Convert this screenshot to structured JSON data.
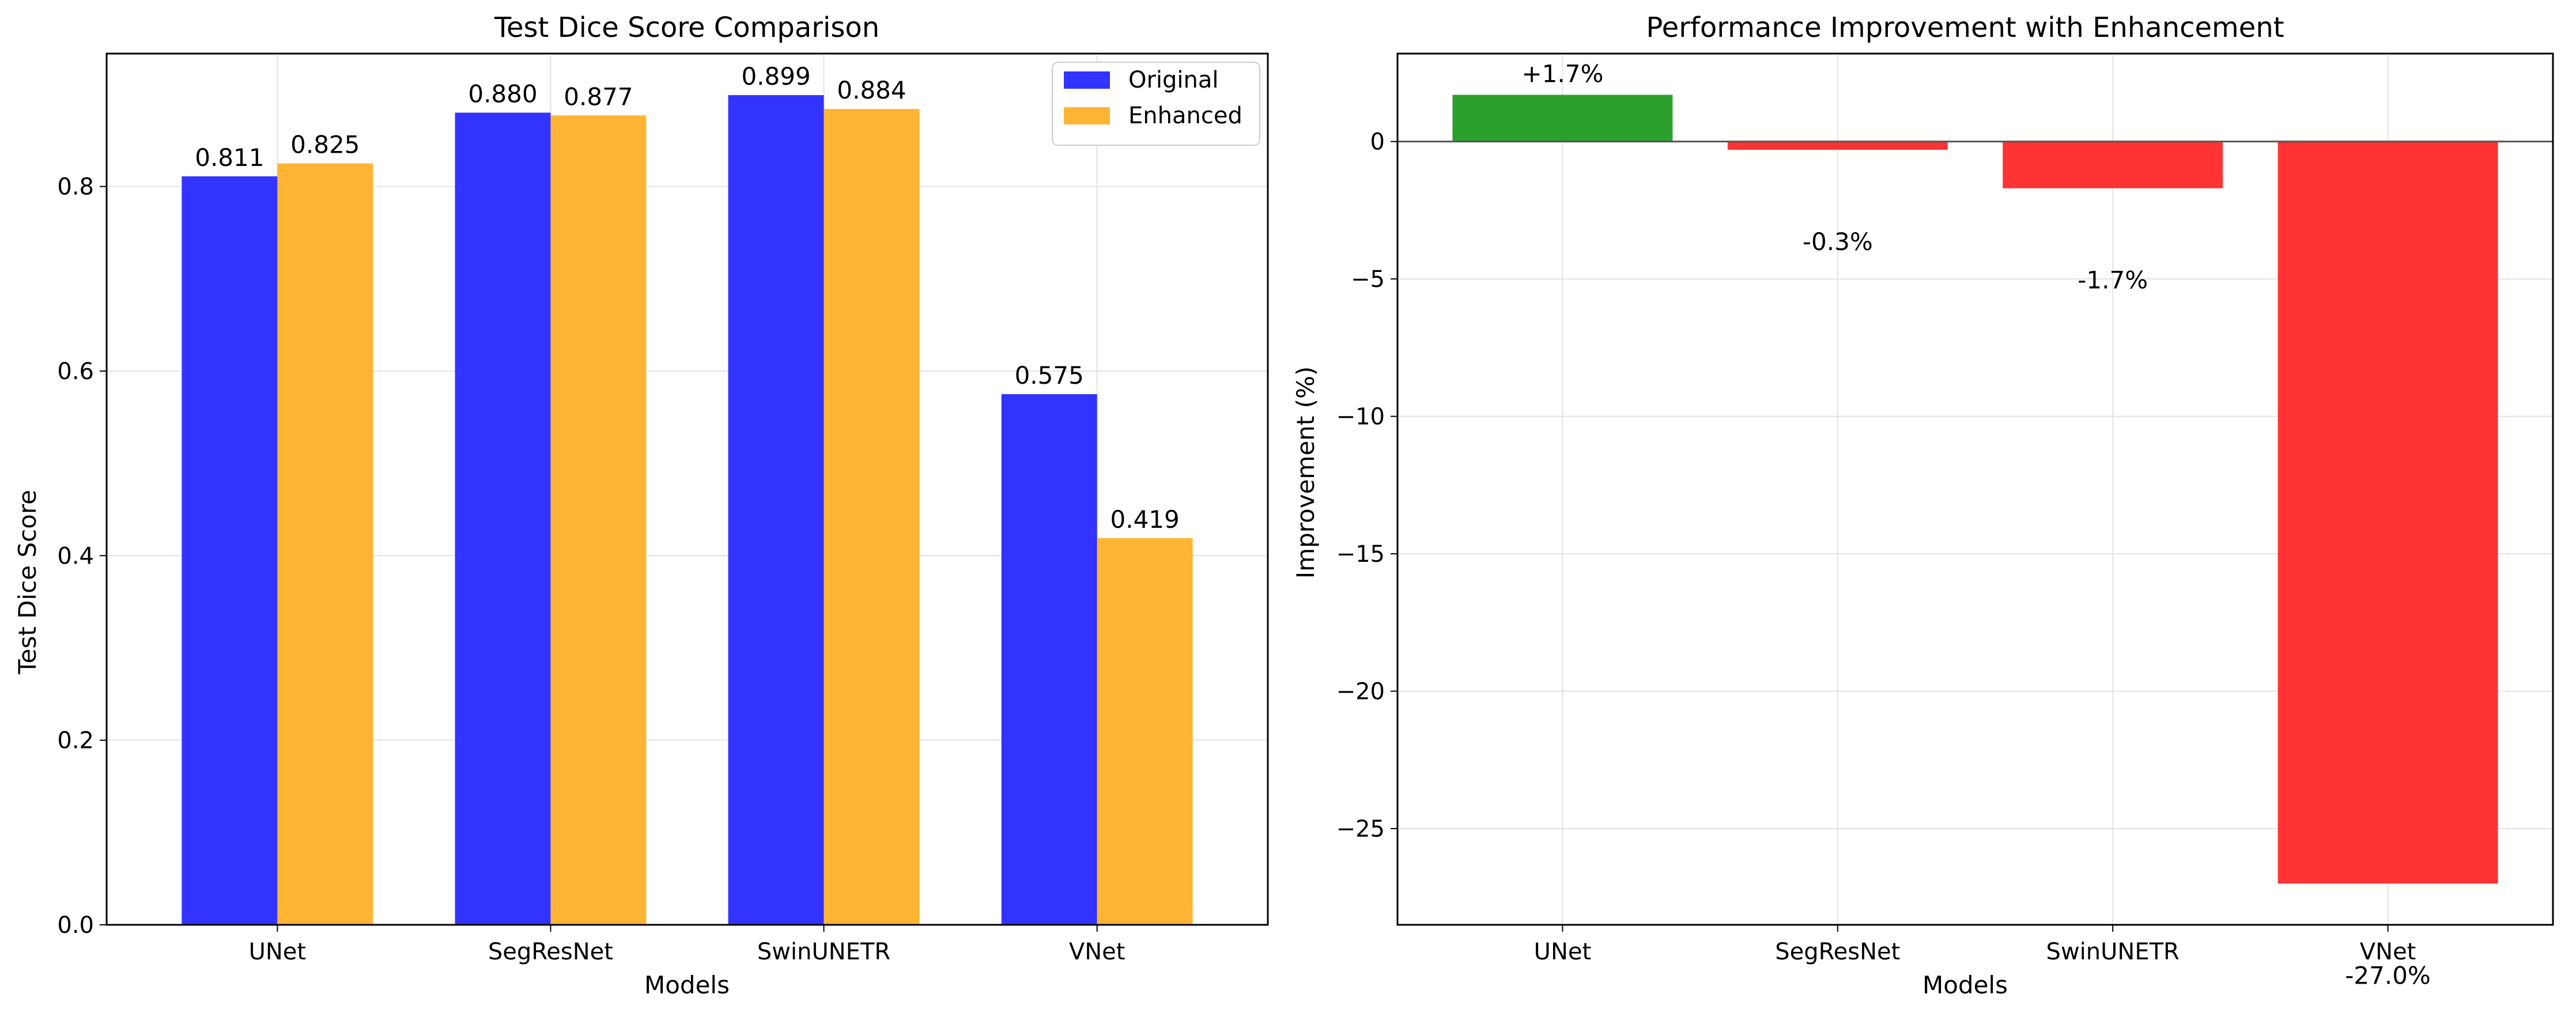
{
  "chart_data": [
    {
      "type": "bar",
      "title": "Test Dice Score Comparison",
      "xlabel": "Models",
      "ylabel": "Test Dice Score",
      "categories": [
        "UNet",
        "SegResNet",
        "SwinUNETR",
        "VNet"
      ],
      "series": [
        {
          "name": "Original",
          "values": [
            0.811,
            0.88,
            0.899,
            0.575
          ],
          "labels": [
            "0.811",
            "0.880",
            "0.899",
            "0.575"
          ],
          "color": "#3333ff"
        },
        {
          "name": "Enhanced",
          "values": [
            0.825,
            0.877,
            0.884,
            0.419
          ],
          "labels": [
            "0.825",
            "0.877",
            "0.884",
            "0.419"
          ],
          "color": "#ffb533"
        }
      ],
      "ylim": [
        0,
        0.944
      ],
      "yticks": [
        0.0,
        0.2,
        0.4,
        0.6,
        0.8
      ],
      "ytick_labels": [
        "0.0",
        "0.2",
        "0.4",
        "0.6",
        "0.8"
      ],
      "grid": true,
      "legend": "top-right"
    },
    {
      "type": "bar",
      "title": "Performance Improvement with Enhancement",
      "xlabel": "Models",
      "ylabel": "Improvement (%)",
      "categories": [
        "UNet",
        "SegResNet",
        "SwinUNETR",
        "VNet"
      ],
      "values": [
        1.7,
        -0.3,
        -1.7,
        -27.0
      ],
      "labels": [
        "+1.7%",
        "-0.3%",
        "-1.7%",
        "-27.0%"
      ],
      "colors": [
        "#2ca02c",
        "#ff3333",
        "#ff3333",
        "#ff3333"
      ],
      "ylim": [
        -28.5,
        3.2
      ],
      "yticks": [
        -25,
        -20,
        -15,
        -10,
        -5,
        0
      ],
      "ytick_labels": [
        "−25",
        "−20",
        "−15",
        "−10",
        "−5",
        "0"
      ],
      "grid": true,
      "zero_line": true
    }
  ]
}
